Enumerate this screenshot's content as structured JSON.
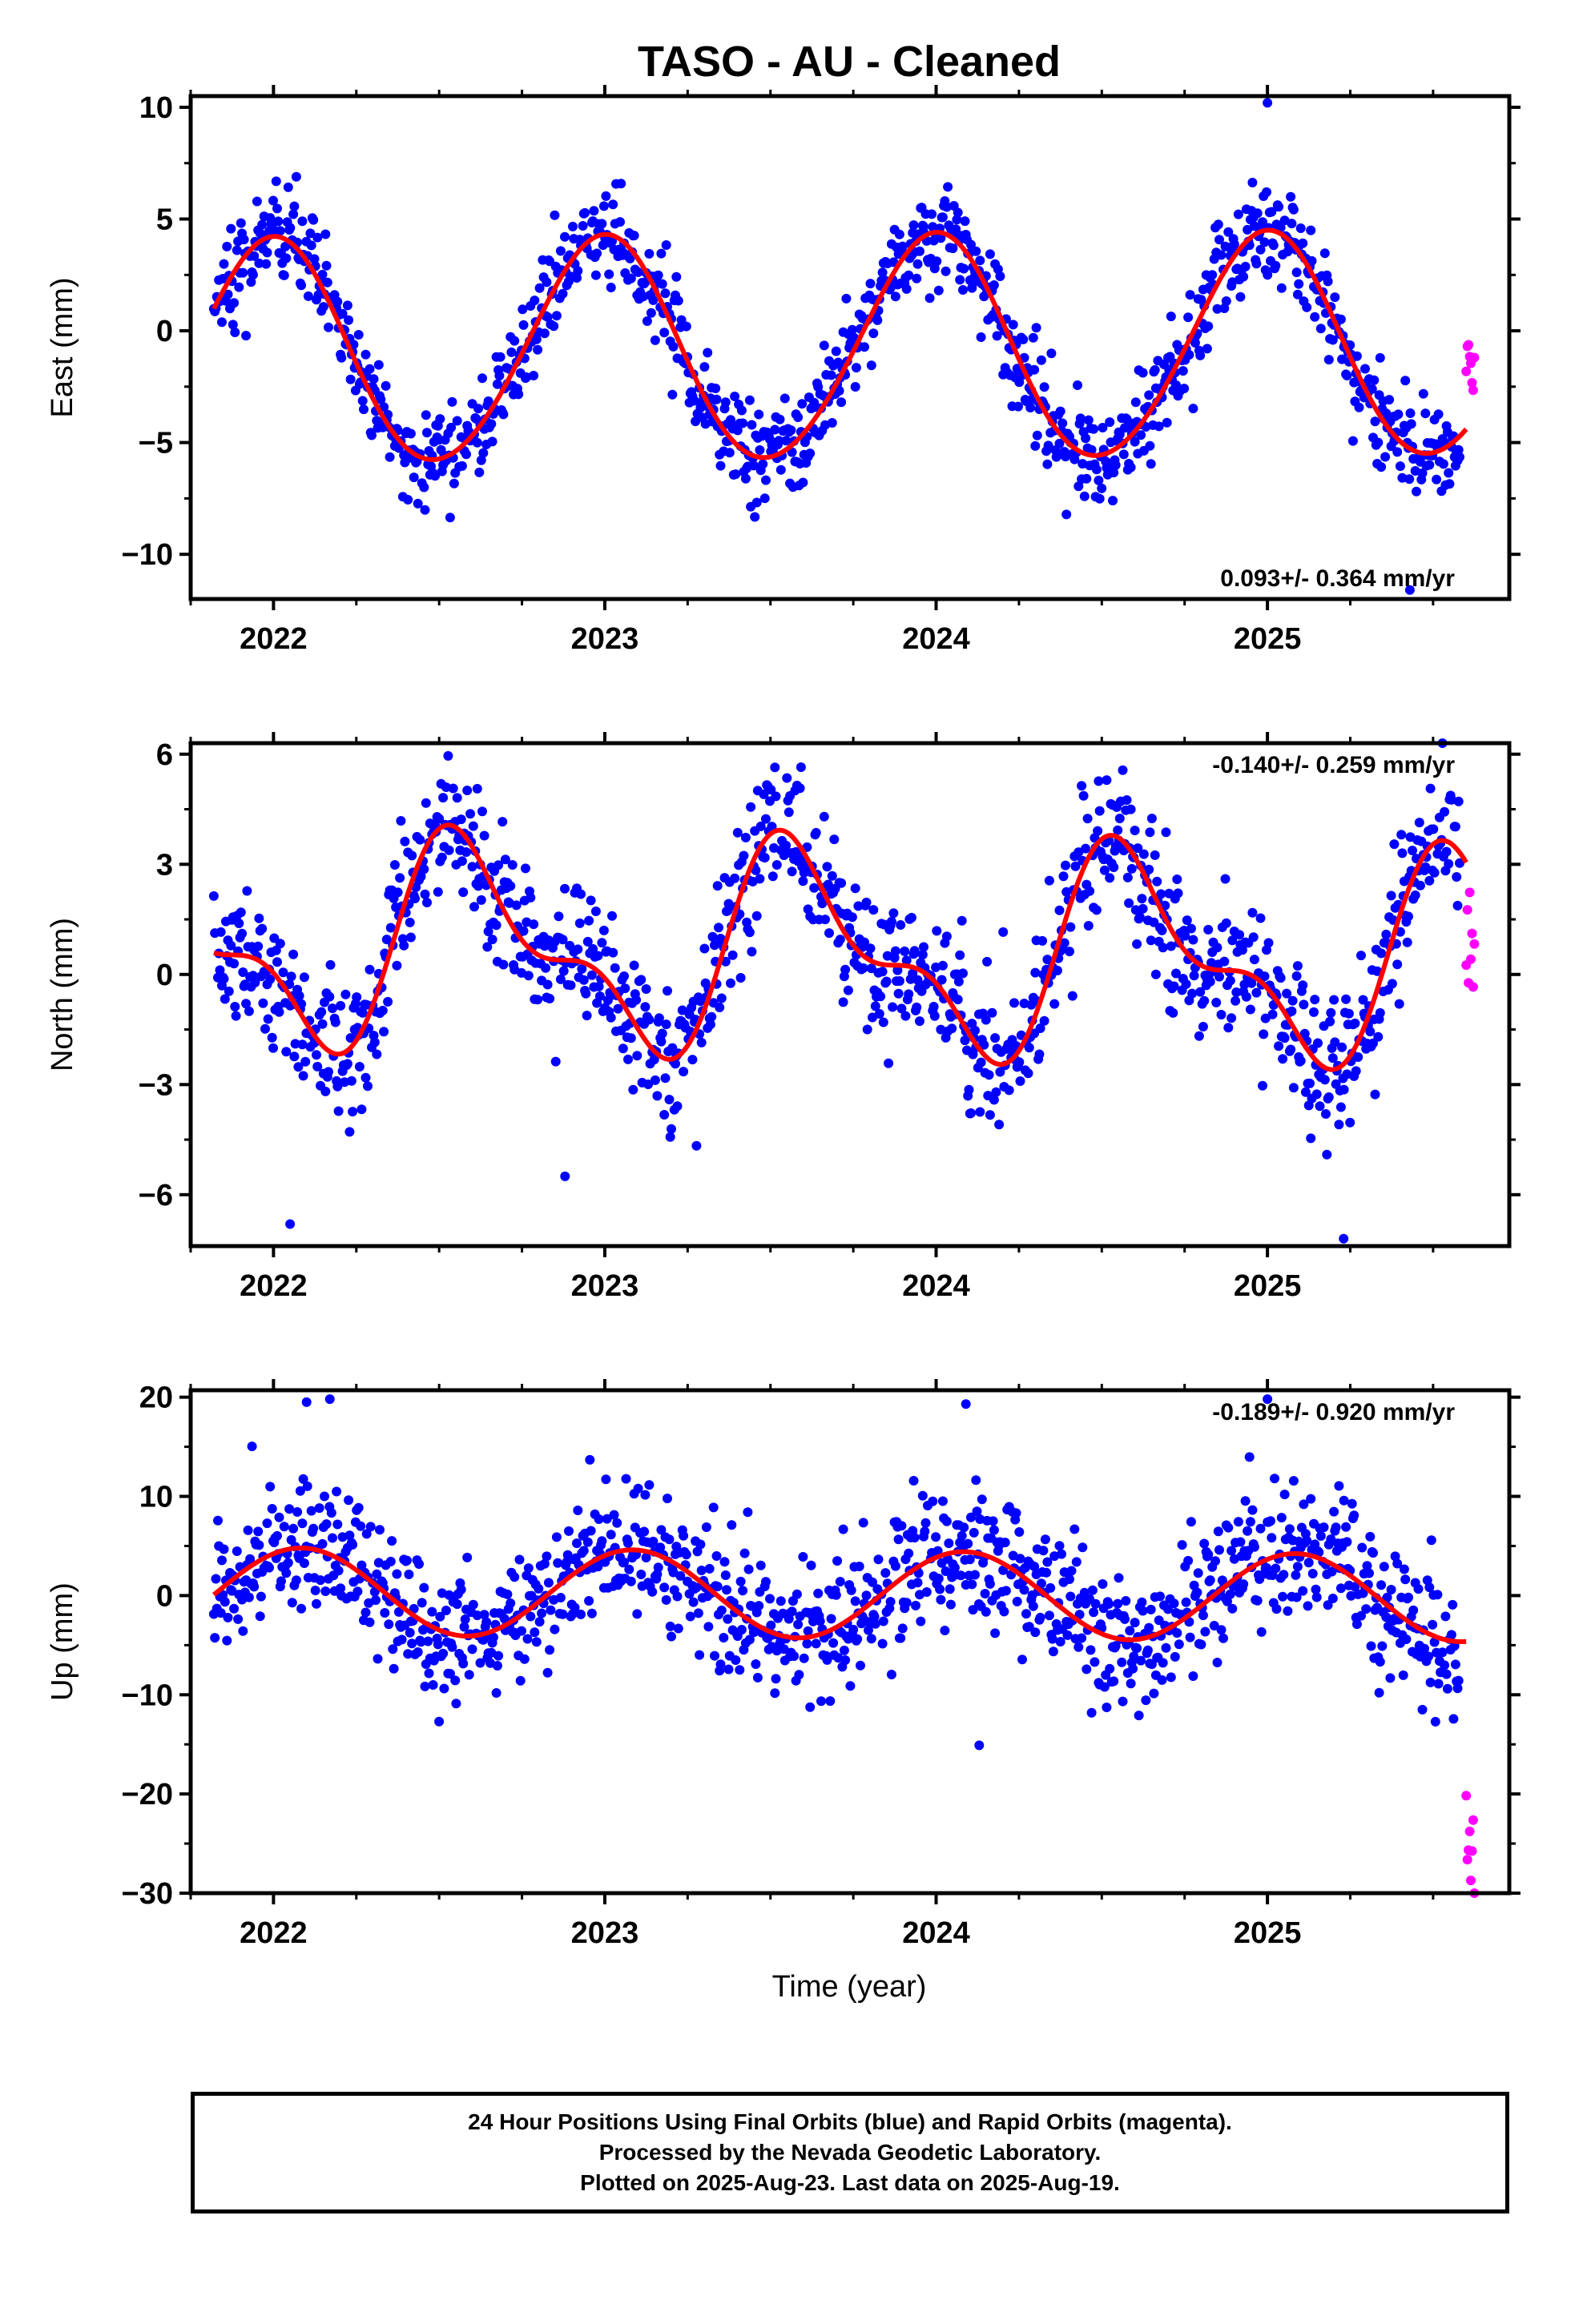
{
  "title": "TASO  - AU - Cleaned",
  "xlabel": "Time (year)",
  "footer": {
    "line1": "24 Hour Positions Using Final Orbits (blue) and Rapid Orbits (magenta).",
    "line2": "Processed by the Nevada Geodetic Laboratory.",
    "line3": "Plotted on 2025-Aug-23. Last data on 2025-Aug-19."
  },
  "colors": {
    "final_orbits": "#0000ff",
    "rapid_orbits": "#ff00ff",
    "model": "#ff0000",
    "frame": "#000000"
  },
  "chart_data": [
    {
      "type": "scatter",
      "panel": "east",
      "ylabel": "East (mm)",
      "xlim": [
        2021.75,
        2025.73
      ],
      "ylim": [
        -12,
        10.5
      ],
      "yticks": [
        -10,
        -5,
        0,
        5,
        10
      ],
      "yticklabels": [
        "−10",
        "−5",
        "0",
        "5",
        "10"
      ],
      "xticks": [
        2022,
        2023,
        2024,
        2025
      ],
      "xticklabels": [
        "2022",
        "2023",
        "2024",
        "2025"
      ],
      "annotation": "0.093+/- 0.364 mm/yr",
      "annotation_position": "bottom-right",
      "x_start": 2021.82,
      "x_end_final": 2025.58,
      "n_final": 1240,
      "x_rapid_start": 2025.6,
      "n_rapid": 8,
      "rate": 0.093,
      "offset": -0.87,
      "annual": {
        "sin": -0.2,
        "cos": 5.0
      },
      "semiannual": {
        "sin": 0.15,
        "cos": 0.25
      },
      "scatter_sd": 1.1,
      "rapid_offset": 2.8,
      "outliers": [
        [
          2025.0,
          10.2
        ],
        [
          2025.43,
          -11.6
        ]
      ],
      "series": [
        {
          "name": "Final Orbits",
          "color": "#0000ff"
        },
        {
          "name": "Rapid Orbits",
          "color": "#ff00ff"
        },
        {
          "name": "Model",
          "color": "#ff0000"
        }
      ]
    },
    {
      "type": "scatter",
      "panel": "north",
      "ylabel": "North (mm)",
      "xlim": [
        2021.75,
        2025.73
      ],
      "ylim": [
        -7.4,
        6.3
      ],
      "yticks": [
        -6,
        -3,
        0,
        3,
        6
      ],
      "yticklabels": [
        "−6",
        "−3",
        "0",
        "3",
        "6"
      ],
      "xticks": [
        2022,
        2023,
        2024,
        2025
      ],
      "xticklabels": [
        "2022",
        "2023",
        "2024",
        "2025"
      ],
      "annotation": "-0.140+/- 0.259 mm/yr",
      "annotation_position": "top-right",
      "x_start": 2021.82,
      "x_end_final": 2025.58,
      "n_final": 1240,
      "x_rapid_start": 2025.6,
      "n_rapid": 8,
      "rate": -0.14,
      "offset": 0.6,
      "annual": {
        "sin": -1.4,
        "cos": -2.0
      },
      "semiannual": {
        "sin": -0.1,
        "cos": 1.2
      },
      "scatter_sd": 0.95,
      "rapid_offset": -2.6,
      "outliers": [
        [
          2022.05,
          -6.8
        ],
        [
          2022.88,
          -5.5
        ],
        [
          2025.23,
          -7.2
        ]
      ],
      "series": [
        {
          "name": "Final Orbits",
          "color": "#0000ff"
        },
        {
          "name": "Rapid Orbits",
          "color": "#ff00ff"
        },
        {
          "name": "Model",
          "color": "#ff0000"
        }
      ]
    },
    {
      "type": "scatter",
      "panel": "up",
      "ylabel": "Up (mm)",
      "xlim": [
        2021.75,
        2025.73
      ],
      "ylim": [
        -30,
        20.7
      ],
      "yticks": [
        -30,
        -20,
        -10,
        0,
        10,
        20
      ],
      "yticklabels": [
        "−30",
        "−20",
        "−10",
        "0",
        "10",
        "20"
      ],
      "xticks": [
        2022,
        2023,
        2024,
        2025
      ],
      "xticklabels": [
        "2022",
        "2023",
        "2024",
        "2025"
      ],
      "annotation": "-0.189+/- 0.920 mm/yr",
      "annotation_position": "top-right",
      "x_start": 2021.82,
      "x_end_final": 2025.58,
      "n_final": 1240,
      "x_rapid_start": 2025.6,
      "n_rapid": 8,
      "rate": -0.189,
      "offset": 0.1,
      "annual": {
        "sin": 2.2,
        "cos": 3.8
      },
      "semiannual": {
        "sin": 0.0,
        "cos": 0.0
      },
      "scatter_sd": 3.4,
      "rapid_offset": -20.0,
      "outliers": [
        [
          2022.1,
          19.5
        ],
        [
          2022.17,
          19.8
        ],
        [
          2024.09,
          19.3
        ],
        [
          2025.0,
          19.8
        ],
        [
          2024.13,
          -15.1
        ]
      ],
      "series": [
        {
          "name": "Final Orbits",
          "color": "#0000ff"
        },
        {
          "name": "Rapid Orbits",
          "color": "#ff00ff"
        },
        {
          "name": "Model",
          "color": "#ff0000"
        }
      ]
    }
  ]
}
